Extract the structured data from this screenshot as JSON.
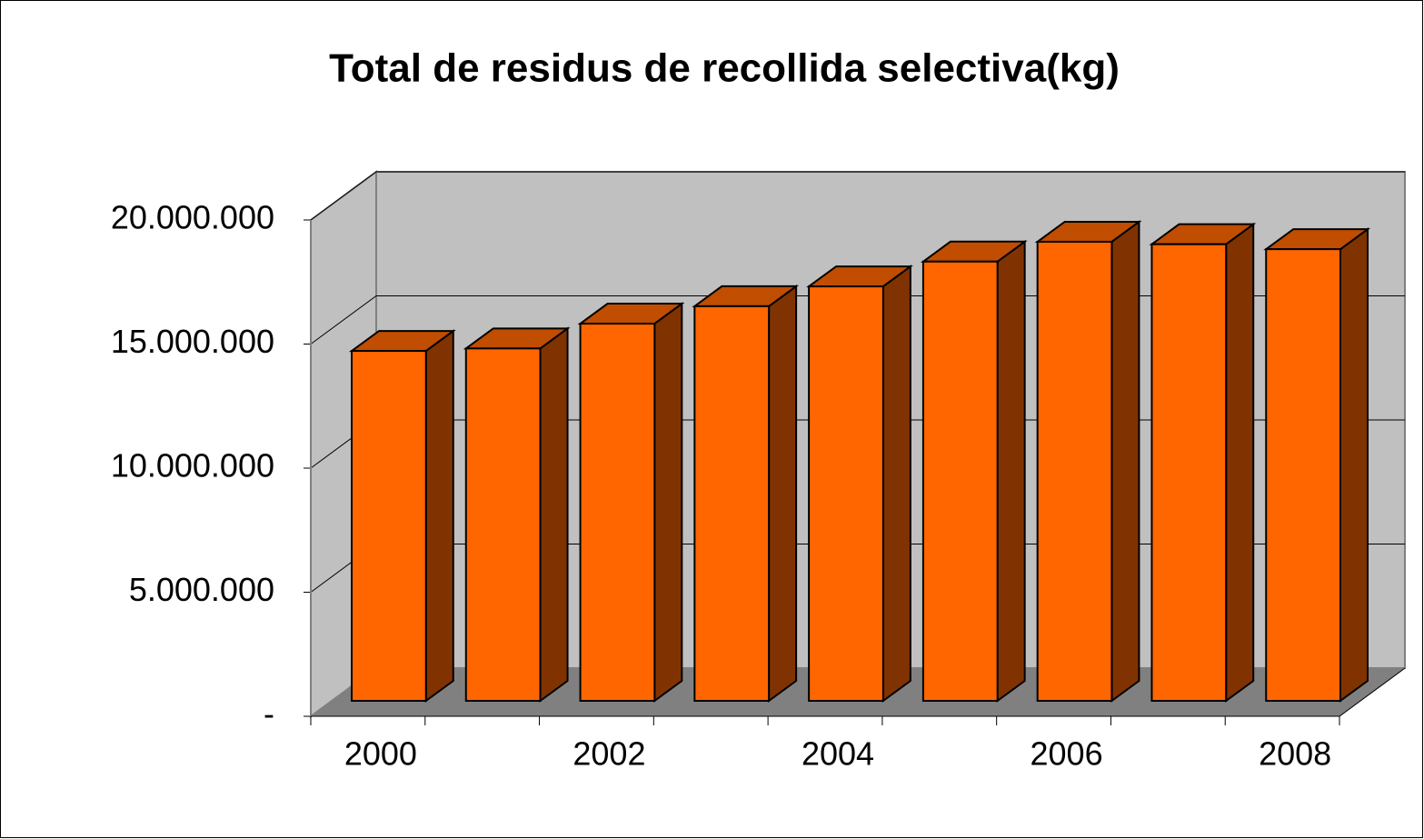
{
  "chart_data": {
    "type": "bar3d",
    "title": "Total de residus de recollida selectiva(kg)",
    "categories": [
      "2000",
      null,
      "2002",
      null,
      "2004",
      null,
      "2006",
      null,
      "2008"
    ],
    "values": [
      14100000,
      14200000,
      15200000,
      15900000,
      16700000,
      17700000,
      18500000,
      18400000,
      18200000
    ],
    "color": "#ff6600",
    "ylim": [
      0,
      20000000
    ],
    "yticks": [
      {
        "value": 0,
        "label": "-"
      },
      {
        "value": 5000000,
        "label": "5.000.000"
      },
      {
        "value": 10000000,
        "label": "10.000.000"
      },
      {
        "value": 15000000,
        "label": "15.000.000"
      },
      {
        "value": 20000000,
        "label": "20.000.000"
      }
    ],
    "grid": true
  }
}
